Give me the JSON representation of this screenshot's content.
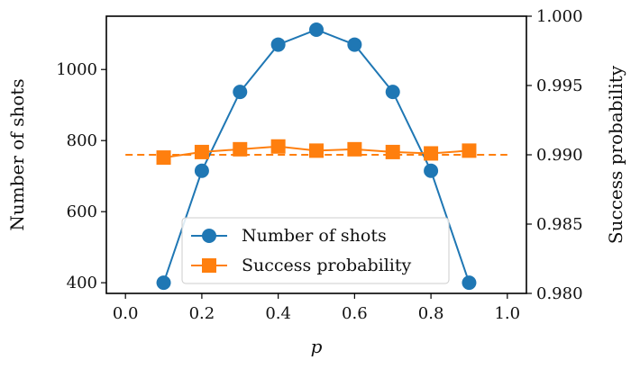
{
  "chart_data": {
    "type": "line",
    "xlabel": "p",
    "ylabel_left": "Number of shots",
    "ylabel_right": "Success probability",
    "xlim": [
      -0.05,
      1.05
    ],
    "ylim_left": [
      370,
      1150
    ],
    "ylim_right": [
      0.98,
      1.0
    ],
    "x_ticks": [
      0.0,
      0.2,
      0.4,
      0.6,
      0.8,
      1.0
    ],
    "x_tick_labels": [
      "0.0",
      "0.2",
      "0.4",
      "0.6",
      "0.8",
      "1.0"
    ],
    "y_left_ticks": [
      400,
      600,
      800,
      1000
    ],
    "y_left_tick_labels": [
      "400",
      "600",
      "800",
      "1000"
    ],
    "y_right_ticks": [
      0.98,
      0.985,
      0.99,
      0.995,
      1.0
    ],
    "y_right_tick_labels": [
      "0.980",
      "0.985",
      "0.990",
      "0.995",
      "1.000"
    ],
    "reference_line": {
      "axis": "right",
      "y": 0.99,
      "x_range": [
        0.0,
        1.0
      ],
      "color": "#ff7f0e",
      "style": "dashed"
    },
    "legend_position": "lower center",
    "series": [
      {
        "name": "Number of shots",
        "axis": "left",
        "marker": "circle",
        "color": "#1f77b4",
        "x": [
          0.1,
          0.2,
          0.3,
          0.4,
          0.5,
          0.6,
          0.7,
          0.8,
          0.9
        ],
        "values": [
          400,
          715,
          937,
          1070,
          1112,
          1070,
          937,
          715,
          400
        ]
      },
      {
        "name": "Success probability",
        "axis": "right",
        "marker": "square",
        "color": "#ff7f0e",
        "x": [
          0.1,
          0.2,
          0.3,
          0.4,
          0.5,
          0.6,
          0.7,
          0.8,
          0.9
        ],
        "values": [
          0.9898,
          0.9902,
          0.9904,
          0.9906,
          0.9903,
          0.9904,
          0.9902,
          0.9901,
          0.9903
        ]
      }
    ]
  }
}
